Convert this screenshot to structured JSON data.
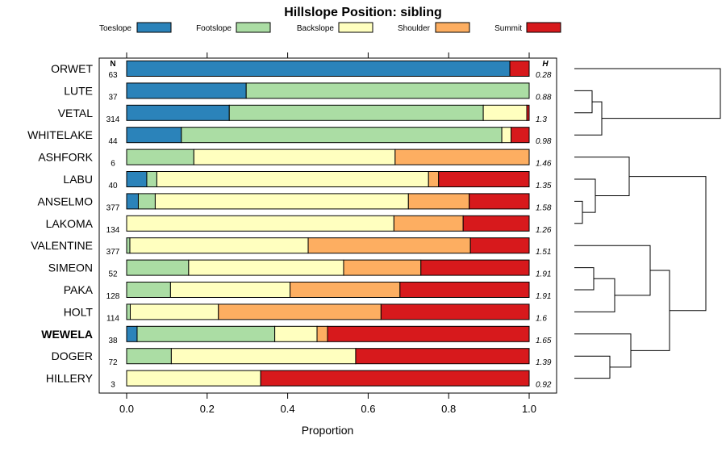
{
  "chart_data": {
    "type": "bar",
    "orientation": "horizontal",
    "stacked": true,
    "title": "Hillslope Position: sibling",
    "xlabel": "Proportion",
    "ylabel": "",
    "xlim": [
      0,
      1
    ],
    "xticks": [
      "0.0",
      "0.2",
      "0.4",
      "0.6",
      "0.8",
      "1.0"
    ],
    "n_header": "N",
    "h_header": "H",
    "legend_position": "top",
    "series": [
      {
        "name": "Toeslope",
        "color": "#2b83ba"
      },
      {
        "name": "Footslope",
        "color": "#abdda4"
      },
      {
        "name": "Backslope",
        "color": "#ffffbf"
      },
      {
        "name": "Shoulder",
        "color": "#fdae61"
      },
      {
        "name": "Summit",
        "color": "#d7191c"
      }
    ],
    "rows": [
      {
        "label": "ORWET",
        "n": "63",
        "h": "0.28",
        "bold": false,
        "values": [
          0.952,
          0,
          0,
          0,
          0.048
        ]
      },
      {
        "label": "LUTE",
        "n": "37",
        "h": "0.88",
        "bold": false,
        "values": [
          0.297,
          0.703,
          0,
          0,
          0
        ]
      },
      {
        "label": "VETAL",
        "n": "314",
        "h": "1.3",
        "bold": false,
        "values": [
          0.255,
          0.631,
          0.108,
          0,
          0.006
        ]
      },
      {
        "label": "WHITELAKE",
        "n": "44",
        "h": "0.98",
        "bold": false,
        "values": [
          0.136,
          0.796,
          0.023,
          0,
          0.045
        ]
      },
      {
        "label": "ASHFORK",
        "n": "6",
        "h": "1.46",
        "bold": false,
        "values": [
          0,
          0.167,
          0.5,
          0.333,
          0
        ]
      },
      {
        "label": "LABU",
        "n": "40",
        "h": "1.35",
        "bold": false,
        "values": [
          0.05,
          0.025,
          0.675,
          0.025,
          0.225
        ]
      },
      {
        "label": "ANSELMO",
        "n": "377",
        "h": "1.58",
        "bold": false,
        "values": [
          0.029,
          0.042,
          0.629,
          0.151,
          0.149
        ]
      },
      {
        "label": "LAKOMA",
        "n": "134",
        "h": "1.26",
        "bold": false,
        "values": [
          0,
          0,
          0.664,
          0.172,
          0.164
        ]
      },
      {
        "label": "VALENTINE",
        "n": "377",
        "h": "1.51",
        "bold": false,
        "values": [
          0,
          0.008,
          0.443,
          0.403,
          0.146
        ]
      },
      {
        "label": "SIMEON",
        "n": "52",
        "h": "1.91",
        "bold": false,
        "values": [
          0,
          0.154,
          0.385,
          0.192,
          0.269
        ]
      },
      {
        "label": "PAKA",
        "n": "128",
        "h": "1.91",
        "bold": false,
        "values": [
          0,
          0.109,
          0.297,
          0.273,
          0.321
        ]
      },
      {
        "label": "HOLT",
        "n": "114",
        "h": "1.6",
        "bold": false,
        "values": [
          0,
          0.009,
          0.219,
          0.404,
          0.368
        ]
      },
      {
        "label": "WEWELA",
        "n": "38",
        "h": "1.65",
        "bold": true,
        "values": [
          0.026,
          0.342,
          0.105,
          0.026,
          0.501
        ]
      },
      {
        "label": "DOGER",
        "n": "72",
        "h": "1.39",
        "bold": false,
        "values": [
          0,
          0.111,
          0.458,
          0,
          0.431
        ]
      },
      {
        "label": "HILLERY",
        "n": "3",
        "h": "0.92",
        "bold": false,
        "values": [
          0,
          0,
          0.333,
          0,
          0.667
        ]
      }
    ]
  }
}
